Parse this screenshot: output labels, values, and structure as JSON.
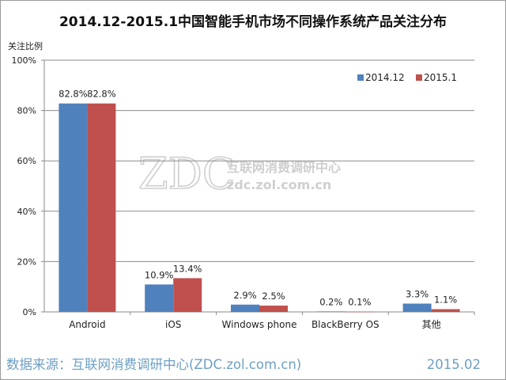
{
  "chart_data": {
    "type": "bar",
    "title": "2014.12-2015.1中国智能手机市场不同操作系统产品关注分布",
    "ylabel": "关注比例",
    "xlabel": "",
    "ylim": [
      0,
      100
    ],
    "yticks": [
      "0%",
      "20%",
      "40%",
      "60%",
      "80%",
      "100%"
    ],
    "categories": [
      "Android",
      "iOS",
      "Windows phone",
      "BlackBerry OS",
      "其他"
    ],
    "series": [
      {
        "name": "2014.12",
        "color": "#4f81bd",
        "values": [
          82.8,
          10.9,
          2.9,
          0.2,
          3.3
        ],
        "labels": [
          "82.8%",
          "10.9%",
          "2.9%",
          "0.2%",
          "3.3%"
        ]
      },
      {
        "name": "2015.1",
        "color": "#c0504d",
        "values": [
          82.8,
          13.4,
          2.5,
          0.1,
          1.1
        ],
        "labels": [
          "82.8%",
          "13.4%",
          "2.5%",
          "0.1%",
          "1.1%"
        ]
      }
    ],
    "legend_position": "top-right",
    "grid": true
  },
  "watermark": {
    "logo": "ZDC",
    "cn": "互联网消费调研中心",
    "url": "zdc.zol.com.cn"
  },
  "footer": {
    "source": "数据来源：互联网消费调研中心(ZDC.zol.com.cn)",
    "date": "2015.02"
  }
}
